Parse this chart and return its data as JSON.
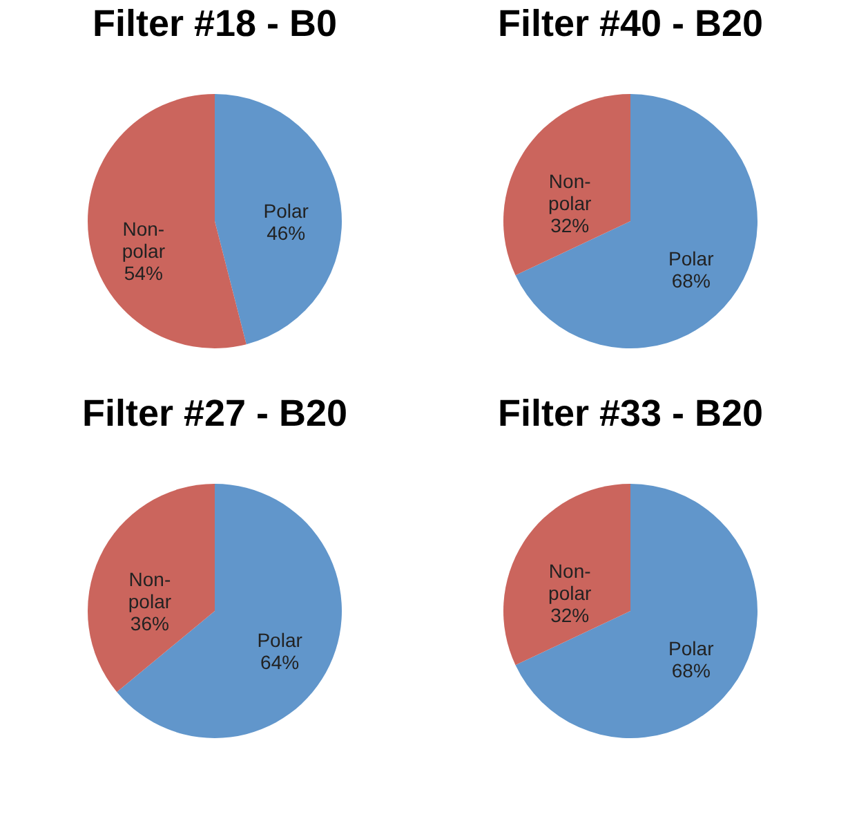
{
  "chart_data": [
    {
      "type": "pie",
      "title": "Filter #18 - B0",
      "categories": [
        "Polar",
        "Non-polar"
      ],
      "values": [
        46,
        54
      ],
      "colors": [
        "#6196cb",
        "#cb655d"
      ],
      "value_labels": [
        "46%",
        "54%"
      ]
    },
    {
      "type": "pie",
      "title": "Filter #40 - B20",
      "categories": [
        "Polar",
        "Non-polar"
      ],
      "values": [
        68,
        32
      ],
      "colors": [
        "#6196cb",
        "#cb655d"
      ],
      "value_labels": [
        "68%",
        "32%"
      ]
    },
    {
      "type": "pie",
      "title": "Filter #27 - B20",
      "categories": [
        "Polar",
        "Non-polar"
      ],
      "values": [
        64,
        36
      ],
      "colors": [
        "#6196cb",
        "#cb655d"
      ],
      "value_labels": [
        "64%",
        "36%"
      ]
    },
    {
      "type": "pie",
      "title": "Filter #33 - B20",
      "categories": [
        "Polar",
        "Non-polar"
      ],
      "values": [
        68,
        32
      ],
      "colors": [
        "#6196cb",
        "#cb655d"
      ],
      "value_labels": [
        "68%",
        "32%"
      ]
    }
  ]
}
